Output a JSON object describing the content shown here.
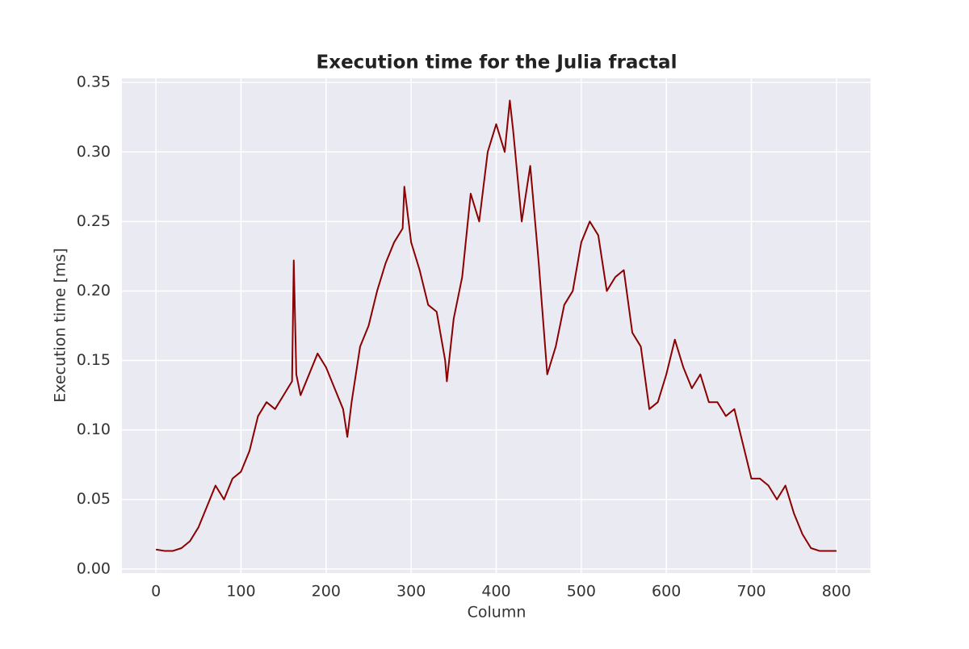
{
  "chart_data": {
    "type": "line",
    "title": "Execution time for the Julia fractal",
    "x_label": "Column",
    "y_label": "Execution time [ms]",
    "x": [
      0,
      10,
      20,
      30,
      40,
      50,
      60,
      70,
      80,
      90,
      100,
      110,
      120,
      130,
      140,
      150,
      160,
      162,
      165,
      170,
      180,
      190,
      200,
      210,
      220,
      225,
      230,
      240,
      250,
      260,
      270,
      280,
      290,
      292,
      300,
      310,
      320,
      330,
      340,
      342,
      350,
      360,
      370,
      380,
      390,
      400,
      410,
      416,
      420,
      430,
      440,
      450,
      460,
      470,
      480,
      490,
      500,
      510,
      520,
      530,
      540,
      550,
      560,
      570,
      580,
      590,
      600,
      610,
      620,
      630,
      640,
      650,
      660,
      670,
      680,
      690,
      700,
      710,
      720,
      730,
      740,
      750,
      760,
      770,
      780,
      790,
      800
    ],
    "series": [
      {
        "name": "Execution time",
        "color": "#8b0000",
        "values": [
          0.014,
          0.013,
          0.013,
          0.015,
          0.02,
          0.03,
          0.045,
          0.06,
          0.05,
          0.065,
          0.07,
          0.085,
          0.11,
          0.12,
          0.115,
          0.125,
          0.135,
          0.222,
          0.14,
          0.125,
          0.14,
          0.155,
          0.145,
          0.13,
          0.115,
          0.095,
          0.12,
          0.16,
          0.175,
          0.2,
          0.22,
          0.235,
          0.245,
          0.275,
          0.235,
          0.215,
          0.19,
          0.185,
          0.15,
          0.135,
          0.18,
          0.21,
          0.27,
          0.25,
          0.3,
          0.32,
          0.3,
          0.337,
          0.315,
          0.25,
          0.29,
          0.22,
          0.14,
          0.16,
          0.19,
          0.2,
          0.235,
          0.25,
          0.24,
          0.2,
          0.21,
          0.215,
          0.17,
          0.16,
          0.115,
          0.12,
          0.14,
          0.165,
          0.145,
          0.13,
          0.14,
          0.12,
          0.12,
          0.11,
          0.115,
          0.09,
          0.065,
          0.065,
          0.06,
          0.05,
          0.06,
          0.04,
          0.025,
          0.015,
          0.013,
          0.013,
          0.013
        ]
      }
    ],
    "xlim": [
      -40,
      840
    ],
    "ylim": [
      -0.003,
      0.353
    ],
    "xticks": [
      0,
      100,
      200,
      300,
      400,
      500,
      600,
      700,
      800
    ],
    "yticks": [
      {
        "value": 0,
        "label": "0.00"
      },
      {
        "value": 0.05,
        "label": "0.05"
      },
      {
        "value": 0.1,
        "label": "0.10"
      },
      {
        "value": 0.15,
        "label": "0.15"
      },
      {
        "value": 0.2,
        "label": "0.20"
      },
      {
        "value": 0.25,
        "label": "0.25"
      },
      {
        "value": 0.3,
        "label": "0.30"
      },
      {
        "value": 0.35,
        "label": "0.35"
      }
    ],
    "grid": true,
    "background": "#eaeaf2"
  }
}
